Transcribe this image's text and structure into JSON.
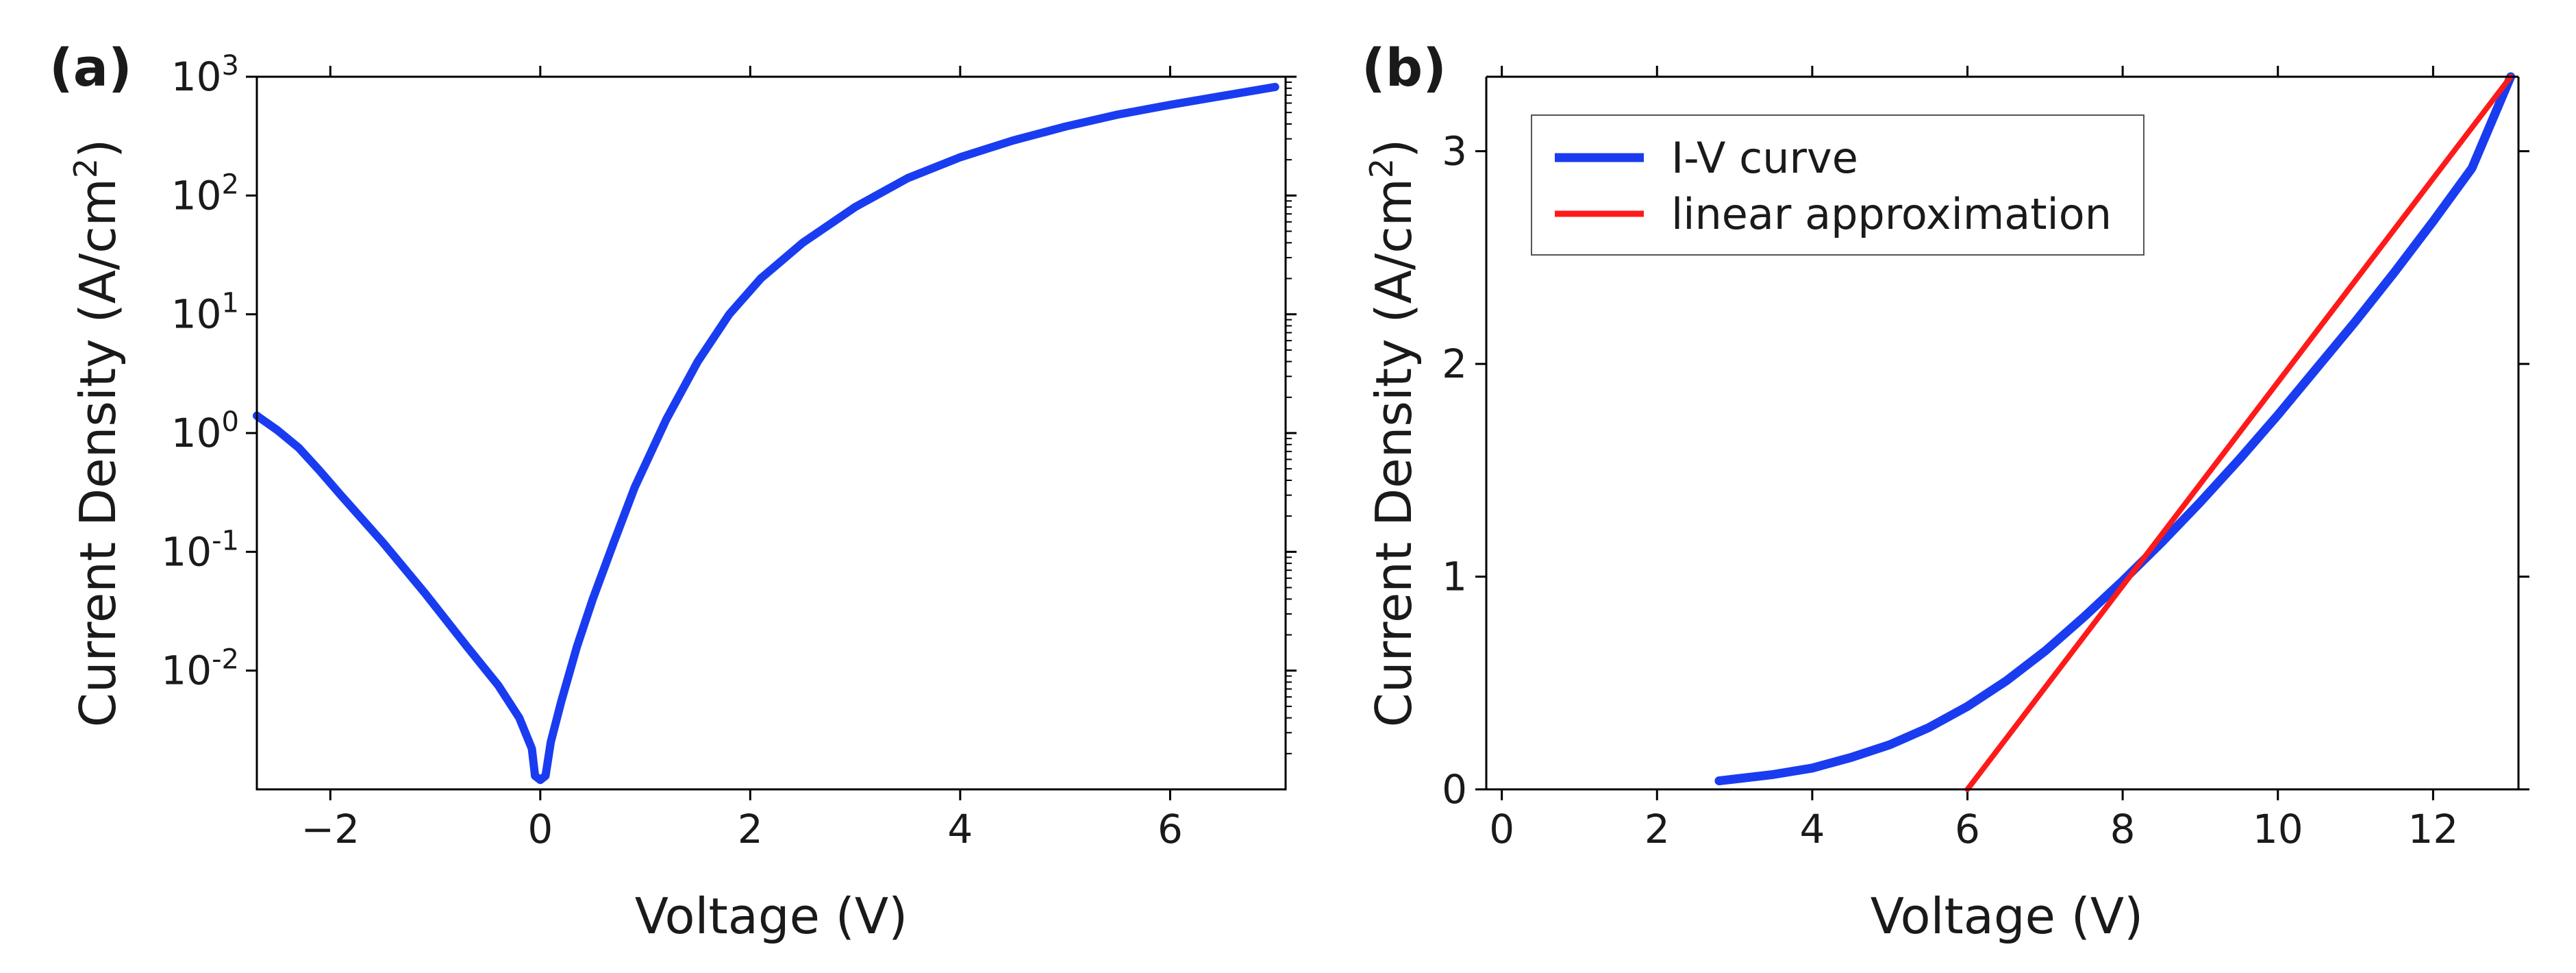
{
  "chart_data": [
    {
      "type": "line",
      "panel_label": "(a)",
      "xlabel": "Voltage (V)",
      "ylabel_main": "Current Density (A/cm",
      "ylabel_sup": "2",
      "ylabel_close": ")",
      "yscale": "log",
      "xlim": [
        -2.7,
        7.1
      ],
      "ylim": [
        0.001,
        1000
      ],
      "x_ticks": [
        {
          "value": -2,
          "label": "−2"
        },
        {
          "value": 0,
          "label": "0"
        },
        {
          "value": 2,
          "label": "2"
        },
        {
          "value": 4,
          "label": "4"
        },
        {
          "value": 6,
          "label": "6"
        }
      ],
      "y_ticks": [
        {
          "value": 1000,
          "base": "10",
          "exp": "3"
        },
        {
          "value": 100,
          "base": "10",
          "exp": "2"
        },
        {
          "value": 10,
          "base": "10",
          "exp": "1"
        },
        {
          "value": 1,
          "base": "10",
          "exp": "0"
        },
        {
          "value": 0.1,
          "base": "10",
          "exp": "-1"
        },
        {
          "value": 0.01,
          "base": "10",
          "exp": "-2"
        }
      ],
      "series": [
        {
          "name": "I-V curve",
          "color": "#1a3cf0",
          "x": [
            -2.7,
            -2.5,
            -2.3,
            -2.1,
            -1.9,
            -1.5,
            -1.1,
            -0.7,
            -0.4,
            -0.2,
            -0.08,
            -0.05,
            0.0,
            0.05,
            0.1,
            0.2,
            0.35,
            0.5,
            0.7,
            0.9,
            1.2,
            1.5,
            1.8,
            2.1,
            2.5,
            3.0,
            3.5,
            4.0,
            4.5,
            5.0,
            5.5,
            6.0,
            6.5,
            7.0
          ],
          "y": [
            1.4,
            1.05,
            0.75,
            0.48,
            0.3,
            0.12,
            0.045,
            0.016,
            0.0075,
            0.004,
            0.0022,
            0.0013,
            0.0012,
            0.0013,
            0.0025,
            0.0055,
            0.016,
            0.04,
            0.12,
            0.35,
            1.3,
            4.0,
            10,
            20,
            40,
            80,
            140,
            210,
            290,
            380,
            480,
            580,
            690,
            820
          ]
        }
      ]
    },
    {
      "type": "line",
      "panel_label": "(b)",
      "xlabel": "Voltage (V)",
      "ylabel_main": "Current Density (A/cm",
      "ylabel_sup": "2",
      "ylabel_close": ")",
      "yscale": "linear",
      "xlim": [
        -0.2,
        13.1
      ],
      "ylim": [
        0,
        3.35
      ],
      "x_ticks": [
        {
          "value": 0,
          "label": "0"
        },
        {
          "value": 2,
          "label": "2"
        },
        {
          "value": 4,
          "label": "4"
        },
        {
          "value": 6,
          "label": "6"
        },
        {
          "value": 8,
          "label": "8"
        },
        {
          "value": 10,
          "label": "10"
        },
        {
          "value": 12,
          "label": "12"
        }
      ],
      "y_ticks": [
        {
          "value": 0,
          "label": "0"
        },
        {
          "value": 1,
          "label": "1"
        },
        {
          "value": 2,
          "label": "2"
        },
        {
          "value": 3,
          "label": "3"
        }
      ],
      "legend_position": "top-left",
      "series": [
        {
          "name": "I-V curve",
          "color": "#1a3cf0",
          "x": [
            2.8,
            3.5,
            4.0,
            4.5,
            5.0,
            5.5,
            6.0,
            6.5,
            7.0,
            7.5,
            8.0,
            8.5,
            9.0,
            9.5,
            10.0,
            10.5,
            11.0,
            11.5,
            12.0,
            12.5,
            13.0
          ],
          "y": [
            0.04,
            0.07,
            0.1,
            0.15,
            0.21,
            0.29,
            0.39,
            0.51,
            0.65,
            0.81,
            0.98,
            1.16,
            1.35,
            1.55,
            1.76,
            1.98,
            2.2,
            2.43,
            2.67,
            2.92,
            3.35
          ]
        },
        {
          "name": "linear approximation",
          "color": "#ff1a1a",
          "x": [
            6.0,
            13.0
          ],
          "y": [
            0.0,
            3.35
          ]
        }
      ]
    }
  ]
}
